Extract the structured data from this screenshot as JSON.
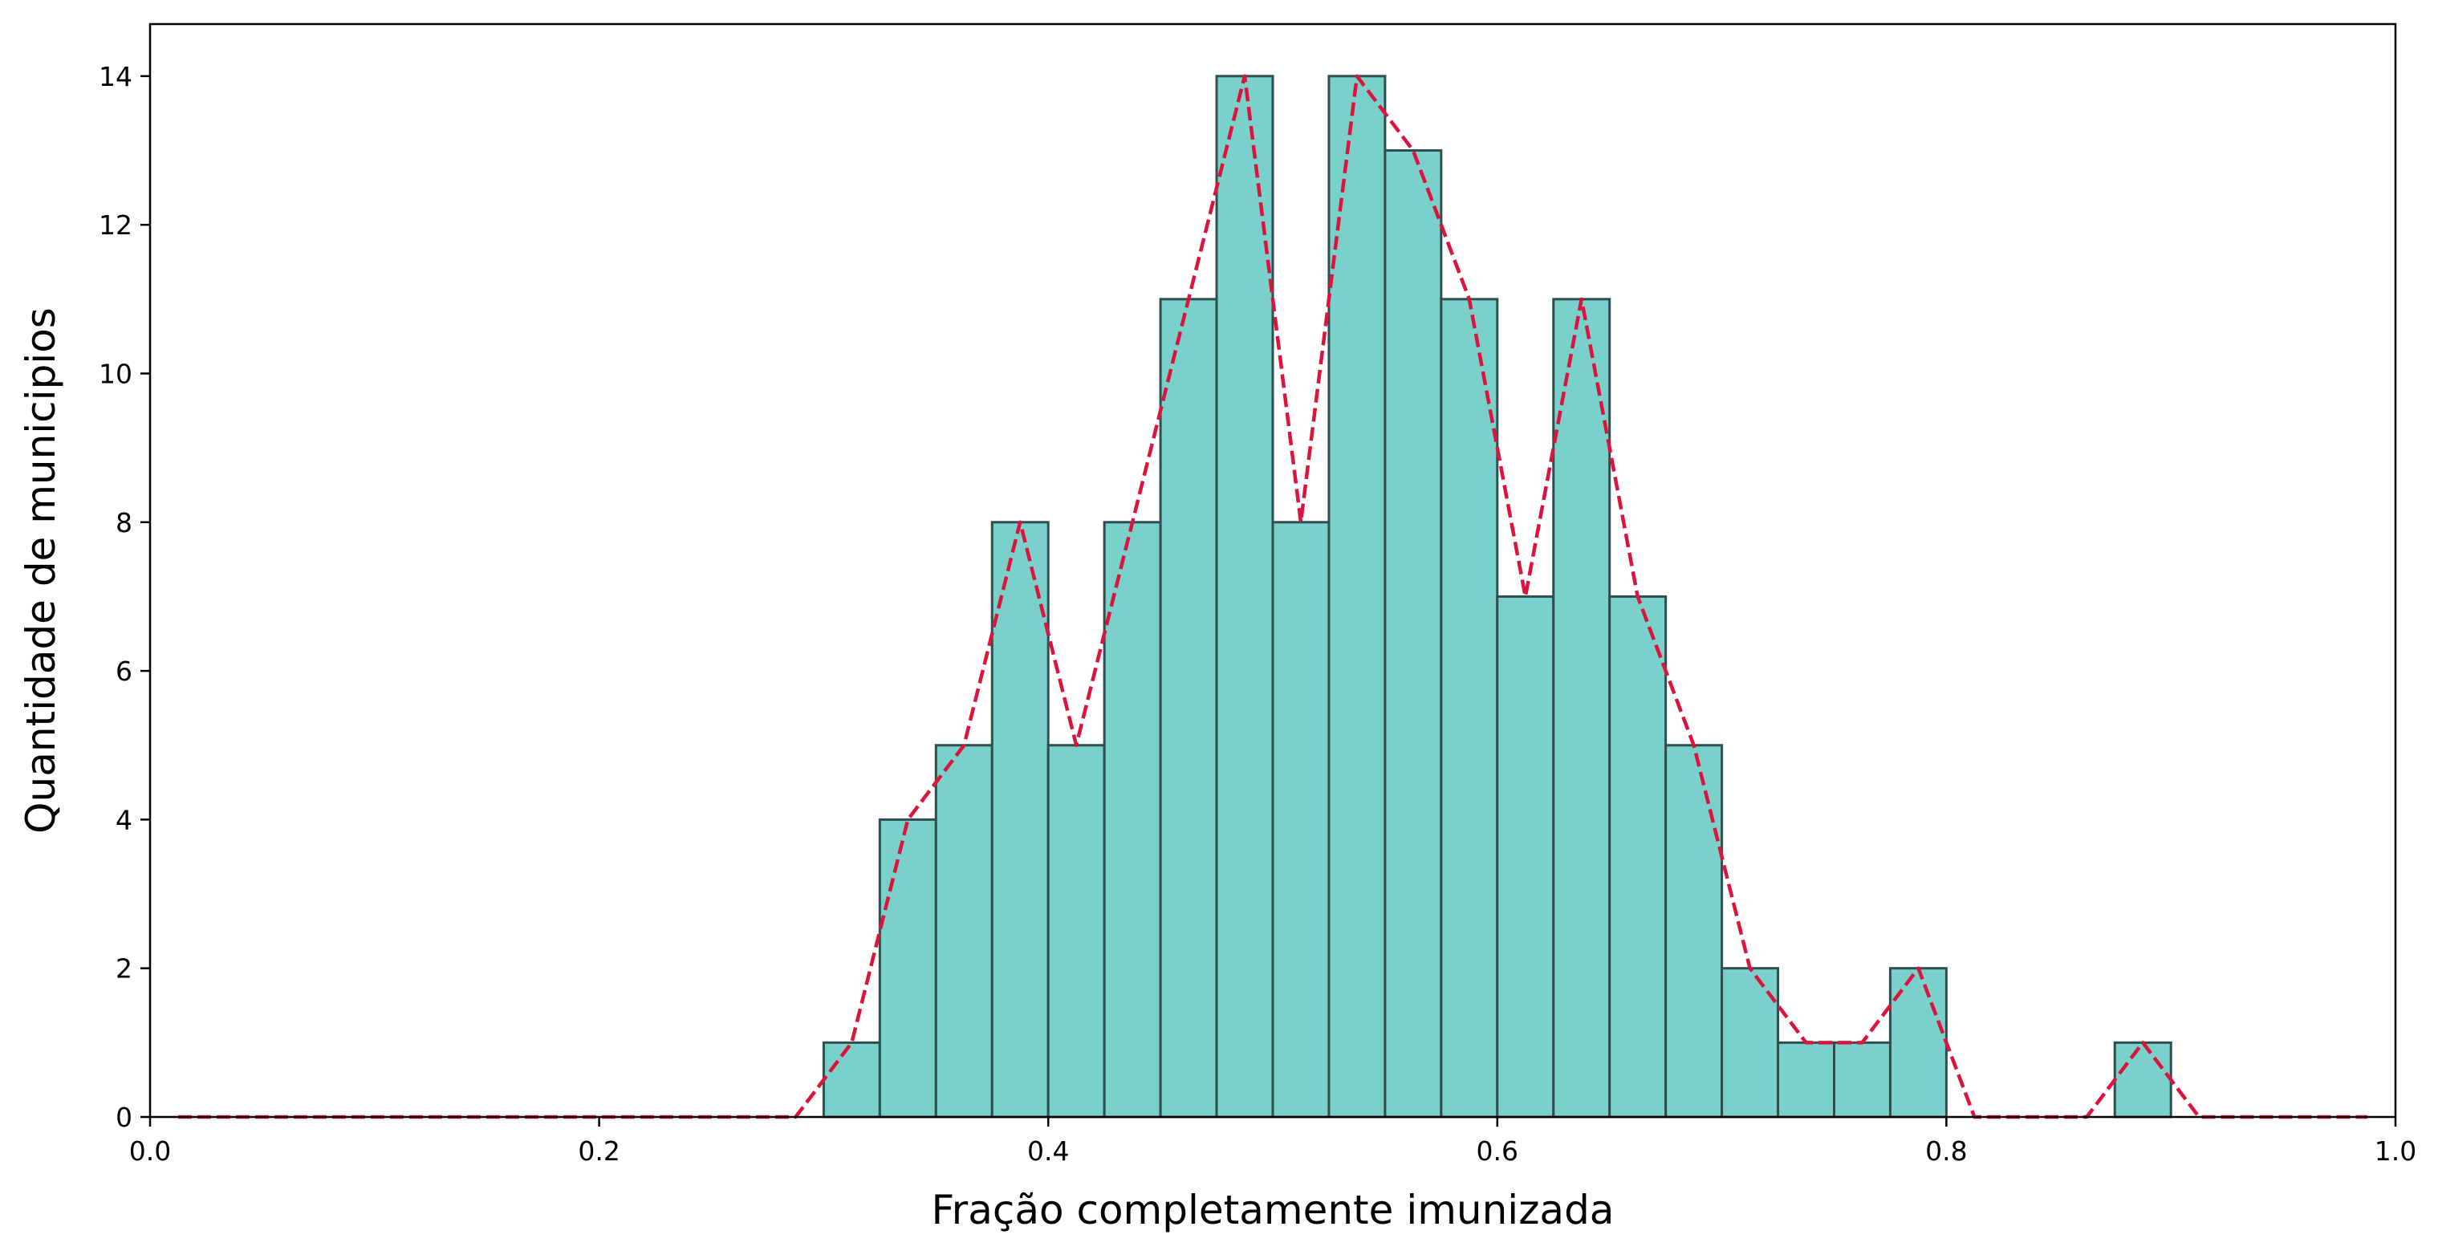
{
  "chart_data": {
    "type": "bar",
    "subtype": "histogram",
    "title": "",
    "xlabel": "Fração completamente imunizada",
    "ylabel": "Quantidade de municipios",
    "xlim": [
      0.0,
      1.0
    ],
    "ylim": [
      0,
      14.7
    ],
    "xticks": [
      0.0,
      0.2,
      0.4,
      0.6,
      0.8,
      1.0
    ],
    "xtick_labels": [
      "0.0",
      "0.2",
      "0.4",
      "0.6",
      "0.8",
      "1.0"
    ],
    "yticks": [
      0,
      2,
      4,
      6,
      8,
      10,
      12,
      14
    ],
    "ytick_labels": [
      "0",
      "2",
      "4",
      "6",
      "8",
      "10",
      "12",
      "14"
    ],
    "grid": false,
    "legend": "none",
    "bins": {
      "start": 0.0,
      "width": 0.025,
      "counts": [
        0,
        0,
        0,
        0,
        0,
        0,
        0,
        0,
        0,
        0,
        0,
        0,
        1,
        4,
        5,
        8,
        5,
        8,
        11,
        14,
        8,
        14,
        13,
        11,
        7,
        11,
        7,
        5,
        2,
        1,
        1,
        2,
        0,
        0,
        0,
        1,
        0,
        0,
        0,
        0
      ]
    },
    "line": {
      "style": "dashed",
      "x": [
        0.0125,
        0.0375,
        0.0625,
        0.0875,
        0.1125,
        0.1375,
        0.1625,
        0.1875,
        0.2125,
        0.2375,
        0.2625,
        0.2875,
        0.3125,
        0.3375,
        0.3625,
        0.3875,
        0.4125,
        0.4375,
        0.4625,
        0.4875,
        0.5125,
        0.5375,
        0.5625,
        0.5875,
        0.6125,
        0.6375,
        0.6625,
        0.6875,
        0.7125,
        0.7375,
        0.7625,
        0.7875,
        0.8125,
        0.8375,
        0.8625,
        0.8875,
        0.9125,
        0.9375,
        0.9625,
        0.9875
      ],
      "y": [
        0,
        0,
        0,
        0,
        0,
        0,
        0,
        0,
        0,
        0,
        0,
        0,
        1,
        4,
        5,
        8,
        5,
        8,
        11,
        14,
        8,
        14,
        13,
        11,
        7,
        11,
        7,
        5,
        2,
        1,
        1,
        2,
        0,
        0,
        0,
        1,
        0,
        0,
        0,
        0
      ]
    },
    "colors": {
      "bar_fill": "#7ad1cc",
      "bar_edge": "#2f4f4f",
      "line": "#dc143c"
    }
  }
}
